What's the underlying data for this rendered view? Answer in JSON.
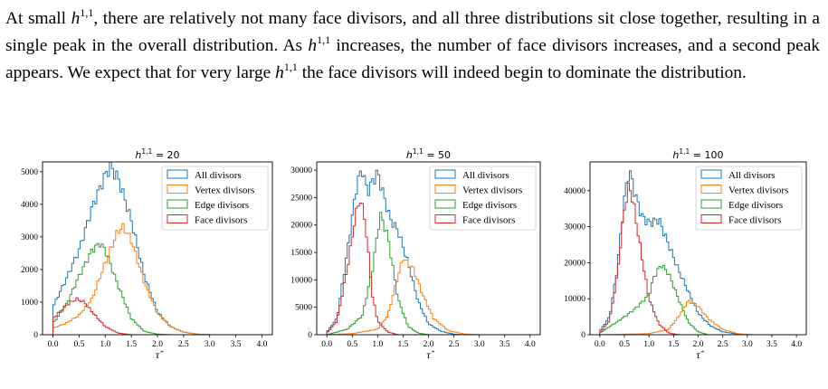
{
  "paragraph": {
    "s1_a": "At small ",
    "s1_b": ", there are relatively not many face divisors, and all three distributions sit close together, resulting in a single peak in the overall distribution. As ",
    "s1_c": " increases, the number of face divisors increases, and a second peak appears. We expect that for very large ",
    "s1_d": " the face divisors will indeed begin to dominate the distribution.",
    "hvar": "h",
    "hsup": "1,1"
  },
  "colors": {
    "all": "#1f77b4",
    "vertex": "#ff7f0e",
    "edge": "#2ca02c",
    "face": "#d62728"
  },
  "chart_data": [
    {
      "type": "histogram-step",
      "title": "h^{1,1} = 20",
      "title_value": "= 20",
      "xlabel": "τ̂",
      "xlim": [
        -0.2,
        4.2
      ],
      "ylim": [
        0,
        5300
      ],
      "xticks": [
        "0.0",
        "0.5",
        "1.0",
        "1.5",
        "2.0",
        "2.5",
        "3.0",
        "3.5",
        "4.0"
      ],
      "yticks": [
        "0",
        "1000",
        "2000",
        "3000",
        "4000",
        "5000"
      ],
      "ytick_values": [
        0,
        1000,
        2000,
        3000,
        4000,
        5000
      ],
      "legend": [
        "All divisors",
        "Vertex divisors",
        "Edge divisors",
        "Face divisors"
      ],
      "legend_position": "upper right",
      "series": [
        {
          "name": "All divisors",
          "x": [
            0,
            0.25,
            0.5,
            0.75,
            1.0,
            1.1,
            1.25,
            1.5,
            1.75,
            2.0,
            2.25,
            2.5,
            2.75,
            3.0
          ],
          "values": [
            850,
            1700,
            2600,
            3900,
            4900,
            5150,
            4800,
            3500,
            1800,
            700,
            250,
            80,
            20,
            0
          ]
        },
        {
          "name": "Vertex divisors",
          "x": [
            0,
            0.25,
            0.5,
            0.75,
            1.0,
            1.25,
            1.35,
            1.5,
            1.75,
            2.0,
            2.25,
            2.5,
            2.75,
            3.0
          ],
          "values": [
            200,
            350,
            600,
            1100,
            2200,
            3200,
            3300,
            2900,
            1600,
            650,
            250,
            80,
            20,
            0
          ]
        },
        {
          "name": "Edge divisors",
          "x": [
            0,
            0.25,
            0.5,
            0.75,
            0.9,
            1.0,
            1.25,
            1.5,
            1.75,
            2.0,
            2.25
          ],
          "values": [
            350,
            900,
            1800,
            2600,
            2800,
            2600,
            1500,
            500,
            100,
            20,
            0
          ]
        },
        {
          "name": "Face divisors",
          "x": [
            0,
            0.25,
            0.45,
            0.6,
            0.75,
            1.0,
            1.25,
            1.5
          ],
          "values": [
            500,
            900,
            1100,
            1000,
            700,
            250,
            50,
            0
          ]
        }
      ]
    },
    {
      "type": "histogram-step",
      "title": "h^{1,1} = 50",
      "title_value": "= 50",
      "xlabel": "τ̂",
      "xlim": [
        -0.2,
        4.2
      ],
      "ylim": [
        0,
        31500
      ],
      "xticks": [
        "0.0",
        "0.5",
        "1.0",
        "1.5",
        "2.0",
        "2.5",
        "3.0",
        "3.5",
        "4.0"
      ],
      "yticks": [
        "0",
        "5000",
        "10000",
        "15000",
        "20000",
        "25000",
        "30000"
      ],
      "ytick_values": [
        0,
        5000,
        10000,
        15000,
        20000,
        25000,
        30000
      ],
      "legend": [
        "All divisors",
        "Vertex divisors",
        "Edge divisors",
        "Face divisors"
      ],
      "legend_position": "upper right",
      "series": [
        {
          "name": "All divisors",
          "x": [
            0,
            0.2,
            0.4,
            0.6,
            0.7,
            0.8,
            0.9,
            1.0,
            1.1,
            1.25,
            1.4,
            1.6,
            1.8,
            2.0,
            2.25,
            2.5,
            2.75
          ],
          "values": [
            500,
            3000,
            15000,
            28000,
            30000,
            26000,
            28000,
            29500,
            26000,
            21000,
            19000,
            13000,
            6000,
            2000,
            600,
            100,
            0
          ]
        },
        {
          "name": "Vertex divisors",
          "x": [
            0,
            0.5,
            1.0,
            1.2,
            1.35,
            1.5,
            1.7,
            1.9,
            2.1,
            2.4,
            2.7,
            3.0
          ],
          "values": [
            0,
            200,
            1000,
            3500,
            9000,
            14000,
            12000,
            7000,
            3000,
            700,
            150,
            0
          ]
        },
        {
          "name": "Edge divisors",
          "x": [
            0,
            0.4,
            0.7,
            0.9,
            1.05,
            1.2,
            1.4,
            1.6,
            1.8,
            2.0
          ],
          "values": [
            0,
            1000,
            3500,
            12000,
            22000,
            18000,
            6500,
            1500,
            300,
            0
          ]
        },
        {
          "name": "Face divisors",
          "x": [
            0,
            0.2,
            0.4,
            0.55,
            0.65,
            0.75,
            0.9,
            1.0,
            1.2,
            1.4
          ],
          "values": [
            300,
            2500,
            12000,
            21000,
            25000,
            21000,
            7000,
            2500,
            500,
            0
          ]
        }
      ]
    },
    {
      "type": "histogram-step",
      "title": "h^{1,1} = 100",
      "title_value": "= 100",
      "xlabel": "τ̂",
      "xlim": [
        -0.2,
        4.2
      ],
      "ylim": [
        0,
        48000
      ],
      "xticks": [
        "0.0",
        "0.5",
        "1.0",
        "1.5",
        "2.0",
        "2.5",
        "3.0",
        "3.5",
        "4.0"
      ],
      "yticks": [
        "0",
        "10000",
        "20000",
        "30000",
        "40000"
      ],
      "ytick_values": [
        0,
        10000,
        20000,
        30000,
        40000
      ],
      "legend": [
        "All divisors",
        "Vertex divisors",
        "Edge divisors",
        "Face divisors"
      ],
      "legend_position": "upper right",
      "series": [
        {
          "name": "All divisors",
          "x": [
            0,
            0.2,
            0.35,
            0.5,
            0.6,
            0.7,
            0.85,
            1.0,
            1.2,
            1.4,
            1.6,
            1.8,
            2.0,
            2.25,
            2.5,
            2.8,
            3.1
          ],
          "values": [
            1000,
            5000,
            18000,
            38000,
            46000,
            40000,
            33000,
            31000,
            32000,
            25000,
            18000,
            12000,
            6000,
            2500,
            800,
            200,
            0
          ]
        },
        {
          "name": "Vertex divisors",
          "x": [
            0,
            1.0,
            1.4,
            1.6,
            1.8,
            2.0,
            2.2,
            2.5,
            2.8,
            3.1
          ],
          "values": [
            0,
            300,
            1500,
            5000,
            9500,
            8000,
            4500,
            1500,
            300,
            0
          ]
        },
        {
          "name": "Edge divisors",
          "x": [
            0,
            0.4,
            0.7,
            1.0,
            1.1,
            1.25,
            1.4,
            1.6,
            1.8,
            2.0,
            2.2
          ],
          "values": [
            500,
            4000,
            7000,
            11000,
            16000,
            19500,
            17000,
            10000,
            3500,
            800,
            0
          ]
        },
        {
          "name": "Face divisors",
          "x": [
            0,
            0.2,
            0.35,
            0.5,
            0.6,
            0.7,
            0.85,
            1.0,
            1.2,
            1.4,
            1.6
          ],
          "values": [
            500,
            4000,
            16000,
            35000,
            42000,
            35000,
            22000,
            10000,
            3000,
            500,
            0
          ]
        }
      ]
    }
  ]
}
